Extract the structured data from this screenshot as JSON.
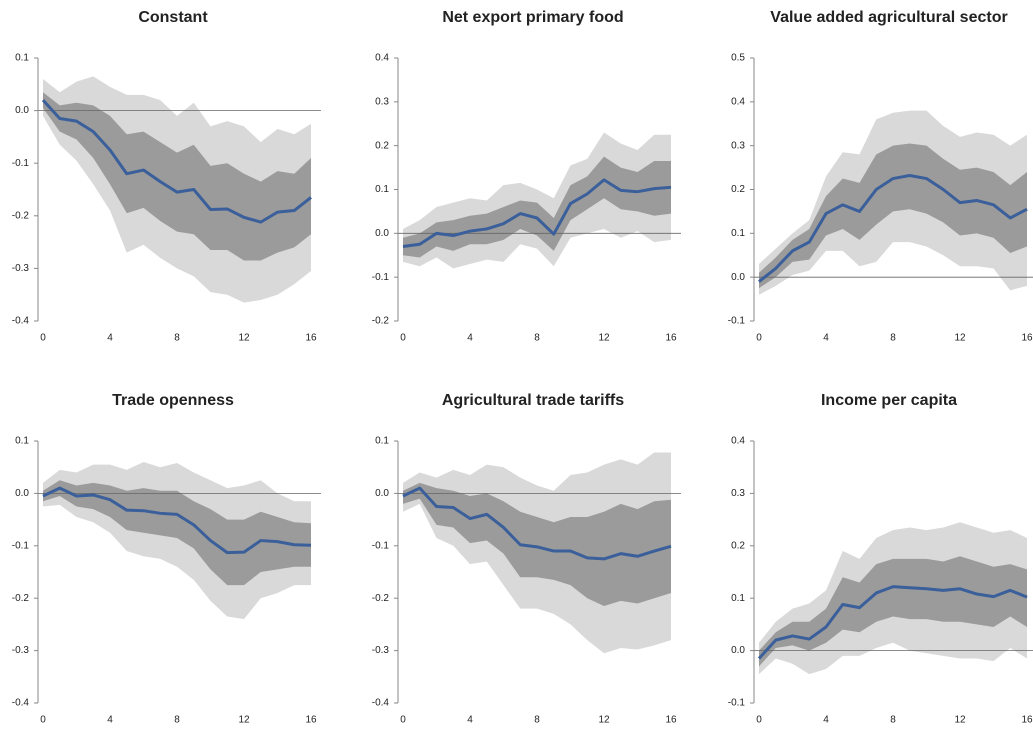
{
  "chart_data": [
    {
      "type": "line",
      "title": "Constant",
      "x": [
        0,
        1,
        2,
        3,
        4,
        5,
        6,
        7,
        8,
        9,
        10,
        11,
        12,
        13,
        14,
        15,
        16
      ],
      "xlim": [
        0,
        16
      ],
      "xticks": [
        0,
        4,
        8,
        12,
        16
      ],
      "ylim": [
        -0.4,
        0.1
      ],
      "yticks": [
        -0.4,
        -0.3,
        -0.2,
        -0.1,
        {
          "value": 0,
          "label": "0.0"
        },
        0.1
      ],
      "bands": [
        {
          "color": "#d9d9d9",
          "upper": [
            0.06,
            0.035,
            0.055,
            0.065,
            0.045,
            0.03,
            0.03,
            0.02,
            -0.01,
            0.015,
            -0.03,
            -0.02,
            -0.03,
            -0.06,
            -0.035,
            -0.045,
            -0.025
          ],
          "lower": [
            -0.01,
            -0.065,
            -0.095,
            -0.14,
            -0.19,
            -0.27,
            -0.255,
            -0.28,
            -0.3,
            -0.315,
            -0.345,
            -0.35,
            -0.365,
            -0.36,
            -0.35,
            -0.33,
            -0.305
          ]
        },
        {
          "color": "#9b9b9b",
          "upper": [
            0.035,
            0.01,
            0.015,
            0.01,
            -0.01,
            -0.045,
            -0.04,
            -0.06,
            -0.08,
            -0.065,
            -0.105,
            -0.1,
            -0.12,
            -0.135,
            -0.115,
            -0.12,
            -0.09
          ],
          "lower": [
            0.005,
            -0.04,
            -0.055,
            -0.09,
            -0.14,
            -0.195,
            -0.185,
            -0.21,
            -0.23,
            -0.235,
            -0.265,
            -0.265,
            -0.285,
            -0.285,
            -0.27,
            -0.26,
            -0.235
          ]
        }
      ],
      "color": "#3a5f9a",
      "values": [
        0.02,
        -0.015,
        -0.02,
        -0.04,
        -0.075,
        -0.12,
        -0.113,
        -0.135,
        -0.155,
        -0.15,
        -0.188,
        -0.187,
        -0.203,
        -0.212,
        -0.193,
        -0.19,
        -0.165
      ]
    },
    {
      "type": "line",
      "title": "Net export primary food",
      "x": [
        0,
        1,
        2,
        3,
        4,
        5,
        6,
        7,
        8,
        9,
        10,
        11,
        12,
        13,
        14,
        15,
        16
      ],
      "xlim": [
        0,
        16
      ],
      "xticks": [
        0,
        4,
        8,
        12,
        16
      ],
      "ylim": [
        -0.2,
        0.4
      ],
      "yticks": [
        -0.2,
        -0.1,
        {
          "value": 0,
          "label": "0.0"
        },
        0.1,
        0.2,
        0.3,
        0.4
      ],
      "bands": [
        {
          "color": "#d9d9d9",
          "upper": [
            0.01,
            0.03,
            0.06,
            0.07,
            0.08,
            0.075,
            0.11,
            0.115,
            0.1,
            0.08,
            0.155,
            0.17,
            0.23,
            0.205,
            0.19,
            0.225,
            0.225
          ],
          "lower": [
            -0.065,
            -0.075,
            -0.055,
            -0.08,
            -0.07,
            -0.06,
            -0.065,
            -0.025,
            -0.035,
            -0.075,
            -0.01,
            0.0,
            0.01,
            -0.01,
            0.005,
            -0.02,
            -0.015
          ]
        },
        {
          "color": "#9b9b9b",
          "upper": [
            -0.01,
            0.0,
            0.025,
            0.03,
            0.04,
            0.045,
            0.06,
            0.075,
            0.07,
            0.035,
            0.11,
            0.13,
            0.175,
            0.15,
            0.14,
            0.165,
            0.165
          ],
          "lower": [
            -0.05,
            -0.055,
            -0.03,
            -0.04,
            -0.025,
            -0.025,
            -0.015,
            0.01,
            -0.005,
            -0.04,
            0.03,
            0.055,
            0.08,
            0.055,
            0.05,
            0.04,
            0.045
          ]
        }
      ],
      "color": "#3a5f9a",
      "values": [
        -0.03,
        -0.025,
        0.0,
        -0.005,
        0.005,
        0.01,
        0.022,
        0.045,
        0.035,
        -0.002,
        0.068,
        0.09,
        0.122,
        0.098,
        0.095,
        0.102,
        0.105
      ]
    },
    {
      "type": "line",
      "title": "Value added agricultural sector",
      "x": [
        0,
        1,
        2,
        3,
        4,
        5,
        6,
        7,
        8,
        9,
        10,
        11,
        12,
        13,
        14,
        15,
        16
      ],
      "xlim": [
        0,
        16
      ],
      "xticks": [
        0,
        4,
        8,
        12,
        16
      ],
      "ylim": [
        -0.1,
        0.5
      ],
      "yticks": [
        -0.1,
        {
          "value": 0,
          "label": "0.0"
        },
        0.1,
        0.2,
        0.3,
        0.4,
        0.5
      ],
      "bands": [
        {
          "color": "#d9d9d9",
          "upper": [
            0.03,
            0.065,
            0.1,
            0.13,
            0.23,
            0.285,
            0.28,
            0.36,
            0.375,
            0.38,
            0.38,
            0.345,
            0.32,
            0.33,
            0.325,
            0.3,
            0.325
          ],
          "lower": [
            -0.04,
            -0.02,
            0.005,
            0.015,
            0.06,
            0.06,
            0.025,
            0.035,
            0.08,
            0.08,
            0.07,
            0.05,
            0.025,
            0.025,
            0.02,
            -0.03,
            -0.02
          ]
        },
        {
          "color": "#9b9b9b",
          "upper": [
            0.01,
            0.045,
            0.085,
            0.11,
            0.185,
            0.225,
            0.215,
            0.28,
            0.3,
            0.305,
            0.3,
            0.27,
            0.245,
            0.25,
            0.24,
            0.21,
            0.24
          ],
          "lower": [
            -0.025,
            0.0,
            0.035,
            0.04,
            0.095,
            0.11,
            0.085,
            0.12,
            0.15,
            0.155,
            0.145,
            0.125,
            0.095,
            0.1,
            0.09,
            0.055,
            0.07
          ]
        }
      ],
      "color": "#3a5f9a",
      "values": [
        -0.01,
        0.02,
        0.06,
        0.08,
        0.145,
        0.165,
        0.15,
        0.2,
        0.225,
        0.232,
        0.225,
        0.2,
        0.17,
        0.175,
        0.165,
        0.135,
        0.155
      ]
    },
    {
      "type": "line",
      "title": "Trade openness",
      "x": [
        0,
        1,
        2,
        3,
        4,
        5,
        6,
        7,
        8,
        9,
        10,
        11,
        12,
        13,
        14,
        15,
        16
      ],
      "xlim": [
        0,
        16
      ],
      "xticks": [
        0,
        4,
        8,
        12,
        16
      ],
      "ylim": [
        -0.4,
        0.1
      ],
      "yticks": [
        -0.4,
        -0.3,
        -0.2,
        -0.1,
        {
          "value": 0,
          "label": "0.0"
        },
        0.1
      ],
      "bands": [
        {
          "color": "#d9d9d9",
          "upper": [
            0.02,
            0.045,
            0.04,
            0.055,
            0.055,
            0.045,
            0.06,
            0.05,
            0.058,
            0.04,
            0.025,
            0.01,
            0.015,
            0.025,
            0.0,
            -0.015,
            -0.015
          ],
          "lower": [
            -0.025,
            -0.022,
            -0.045,
            -0.055,
            -0.075,
            -0.11,
            -0.12,
            -0.125,
            -0.14,
            -0.165,
            -0.205,
            -0.235,
            -0.24,
            -0.2,
            -0.19,
            -0.175,
            -0.175
          ]
        },
        {
          "color": "#9b9b9b",
          "upper": [
            0.005,
            0.025,
            0.015,
            0.02,
            0.015,
            0.005,
            0.01,
            0.005,
            0.005,
            -0.015,
            -0.03,
            -0.05,
            -0.05,
            -0.035,
            -0.045,
            -0.055,
            -0.057
          ],
          "lower": [
            -0.015,
            -0.005,
            -0.025,
            -0.03,
            -0.045,
            -0.07,
            -0.075,
            -0.08,
            -0.085,
            -0.105,
            -0.145,
            -0.175,
            -0.175,
            -0.15,
            -0.145,
            -0.14,
            -0.14
          ]
        }
      ],
      "color": "#3a5f9a",
      "values": [
        -0.005,
        0.01,
        -0.005,
        -0.003,
        -0.012,
        -0.032,
        -0.033,
        -0.038,
        -0.04,
        -0.06,
        -0.09,
        -0.113,
        -0.112,
        -0.09,
        -0.092,
        -0.098,
        -0.099
      ]
    },
    {
      "type": "line",
      "title": "Agricultural trade tariffs",
      "x": [
        0,
        1,
        2,
        3,
        4,
        5,
        6,
        7,
        8,
        9,
        10,
        11,
        12,
        13,
        14,
        15,
        16
      ],
      "xlim": [
        0,
        16
      ],
      "xticks": [
        0,
        4,
        8,
        12,
        16
      ],
      "ylim": [
        -0.4,
        0.1
      ],
      "yticks": [
        -0.4,
        -0.3,
        -0.2,
        -0.1,
        {
          "value": 0,
          "label": "0.0"
        },
        0.1
      ],
      "bands": [
        {
          "color": "#d9d9d9",
          "upper": [
            0.02,
            0.04,
            0.03,
            0.045,
            0.035,
            0.055,
            0.05,
            0.03,
            0.015,
            0.005,
            0.035,
            0.04,
            0.055,
            0.065,
            0.055,
            0.078,
            0.078
          ],
          "lower": [
            -0.035,
            -0.02,
            -0.085,
            -0.1,
            -0.135,
            -0.13,
            -0.175,
            -0.22,
            -0.22,
            -0.23,
            -0.25,
            -0.28,
            -0.305,
            -0.295,
            -0.298,
            -0.29,
            -0.28
          ]
        },
        {
          "color": "#9b9b9b",
          "upper": [
            0.005,
            0.02,
            0.01,
            0.005,
            -0.005,
            0.0,
            -0.015,
            -0.035,
            -0.045,
            -0.055,
            -0.045,
            -0.045,
            -0.035,
            -0.02,
            -0.03,
            -0.015,
            -0.012
          ],
          "lower": [
            -0.02,
            -0.01,
            -0.06,
            -0.065,
            -0.095,
            -0.09,
            -0.115,
            -0.16,
            -0.16,
            -0.165,
            -0.175,
            -0.2,
            -0.215,
            -0.205,
            -0.21,
            -0.2,
            -0.19
          ]
        }
      ],
      "color": "#3a5f9a",
      "values": [
        -0.005,
        0.01,
        -0.025,
        -0.027,
        -0.048,
        -0.04,
        -0.065,
        -0.098,
        -0.102,
        -0.11,
        -0.11,
        -0.123,
        -0.125,
        -0.115,
        -0.12,
        -0.11,
        -0.101
      ]
    },
    {
      "type": "line",
      "title": "Income per capita",
      "x": [
        0,
        1,
        2,
        3,
        4,
        5,
        6,
        7,
        8,
        9,
        10,
        11,
        12,
        13,
        14,
        15,
        16
      ],
      "xlim": [
        0,
        16
      ],
      "xticks": [
        0,
        4,
        8,
        12,
        16
      ],
      "ylim": [
        -0.1,
        0.4
      ],
      "yticks": [
        -0.1,
        {
          "value": 0,
          "label": "0.0"
        },
        0.1,
        0.2,
        0.3,
        0.4
      ],
      "bands": [
        {
          "color": "#d9d9d9",
          "upper": [
            0.015,
            0.055,
            0.08,
            0.09,
            0.115,
            0.19,
            0.175,
            0.215,
            0.23,
            0.235,
            0.23,
            0.235,
            0.245,
            0.235,
            0.225,
            0.23,
            0.215
          ],
          "lower": [
            -0.045,
            -0.015,
            -0.025,
            -0.045,
            -0.035,
            -0.01,
            -0.01,
            0.005,
            0.015,
            0.0,
            -0.005,
            -0.01,
            -0.015,
            -0.015,
            -0.02,
            0.005,
            -0.015
          ]
        },
        {
          "color": "#9b9b9b",
          "upper": [
            0.0,
            0.035,
            0.055,
            0.055,
            0.08,
            0.14,
            0.13,
            0.165,
            0.175,
            0.175,
            0.175,
            0.17,
            0.18,
            0.17,
            0.16,
            0.165,
            0.155
          ],
          "lower": [
            -0.03,
            0.005,
            0.01,
            0.0,
            0.015,
            0.04,
            0.035,
            0.055,
            0.065,
            0.06,
            0.06,
            0.055,
            0.055,
            0.05,
            0.045,
            0.065,
            0.045
          ]
        }
      ],
      "color": "#3a5f9a",
      "values": [
        -0.015,
        0.02,
        0.028,
        0.022,
        0.045,
        0.088,
        0.082,
        0.11,
        0.122,
        0.12,
        0.118,
        0.115,
        0.118,
        0.108,
        0.103,
        0.115,
        0.102
      ]
    }
  ]
}
